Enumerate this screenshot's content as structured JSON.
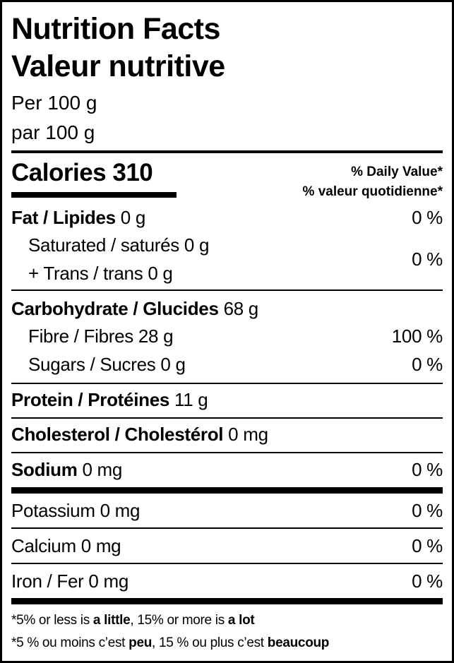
{
  "title_en": "Nutrition Facts",
  "title_fr": "Valeur nutritive",
  "serving_en": "Per 100 g",
  "serving_fr": "par 100 g",
  "calories": {
    "label": "Calories",
    "value": "310"
  },
  "dv_header_en": "% Daily Value*",
  "dv_header_fr": "% valeur quotidienne*",
  "nutrients": {
    "fat": {
      "label": "Fat / Lipides",
      "amount": "0 g",
      "dv": "0 %"
    },
    "saturated": {
      "label": "Saturated / saturés 0 g"
    },
    "trans": {
      "label": "+ Trans / trans 0 g",
      "dv": "0 %"
    },
    "carbohydrate": {
      "label": "Carbohydrate / Glucides",
      "amount": "68 g"
    },
    "fibre": {
      "label": "Fibre / Fibres 28 g",
      "dv": "100 %"
    },
    "sugars": {
      "label": "Sugars / Sucres 0 g",
      "dv": "0 %"
    },
    "protein": {
      "label": "Protein / Protéines",
      "amount": "11 g"
    },
    "cholesterol": {
      "label": "Cholesterol / Cholestérol",
      "amount": "0 mg"
    },
    "sodium": {
      "label": "Sodium",
      "amount": "0 mg",
      "dv": "0 %"
    },
    "potassium": {
      "label": "Potassium 0 mg",
      "dv": "0 %"
    },
    "calcium": {
      "label": "Calcium 0 mg",
      "dv": "0 %"
    },
    "iron": {
      "label": "Iron / Fer 0 mg",
      "dv": "0 %"
    }
  },
  "footnote_en": {
    "a": "*5% or less is ",
    "b": "a little",
    "c": ", 15% or more is ",
    "d": "a lot"
  },
  "footnote_fr": {
    "a": "*5 % ou moins c’est ",
    "b": "peu",
    "c": ", 15 % ou plus c’est ",
    "d": "beaucoup"
  }
}
